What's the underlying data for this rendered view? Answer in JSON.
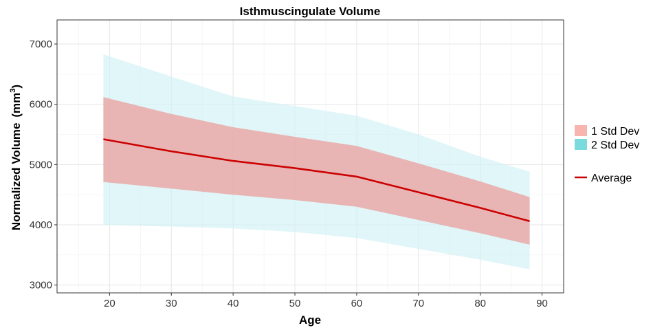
{
  "chart_data": {
    "type": "area",
    "title": "Isthmuscingulate Volume",
    "xlabel": "Age",
    "ylabel_main": "Normalized Volume",
    "ylabel_unit": "(mm",
    "ylabel_unit_sup": "3",
    "ylabel_unit_close": ")",
    "xlim": [
      11.5,
      93.5
    ],
    "ylim": [
      2870,
      7400
    ],
    "x_ticks": [
      20,
      30,
      40,
      50,
      60,
      70,
      80,
      90
    ],
    "y_ticks": [
      3000,
      4000,
      5000,
      6000,
      7000
    ],
    "grid": true,
    "legend_position": "right",
    "colors": {
      "band_1sd": "#E9A3A0",
      "band_2sd": "#CFF0F4",
      "average": "#CC0000",
      "legend_1sd": "#F8B4AE",
      "legend_2sd": "#7ADADD"
    },
    "legend": [
      {
        "label": "1 Std Dev",
        "kind": "fill",
        "color_key": "legend_1sd"
      },
      {
        "label": "2 Std Dev",
        "kind": "fill",
        "color_key": "legend_2sd"
      },
      {
        "label": "Average",
        "kind": "line",
        "color_key": "average"
      }
    ],
    "x": [
      19,
      30,
      40,
      50,
      60,
      70,
      80,
      88
    ],
    "series": [
      {
        "name": "Average",
        "values": [
          5420,
          5220,
          5060,
          4940,
          4800,
          4540,
          4280,
          4060
        ]
      },
      {
        "name": "1 Std Dev upper",
        "values": [
          6120,
          5840,
          5620,
          5460,
          5310,
          5020,
          4720,
          4460
        ]
      },
      {
        "name": "1 Std Dev lower",
        "values": [
          4710,
          4600,
          4500,
          4410,
          4300,
          4080,
          3860,
          3670
        ]
      },
      {
        "name": "2 Std Dev upper",
        "values": [
          6830,
          6460,
          6130,
          5970,
          5810,
          5500,
          5130,
          4880
        ]
      },
      {
        "name": "2 Std Dev lower",
        "values": [
          4000,
          3970,
          3940,
          3880,
          3780,
          3600,
          3420,
          3260
        ]
      }
    ]
  }
}
